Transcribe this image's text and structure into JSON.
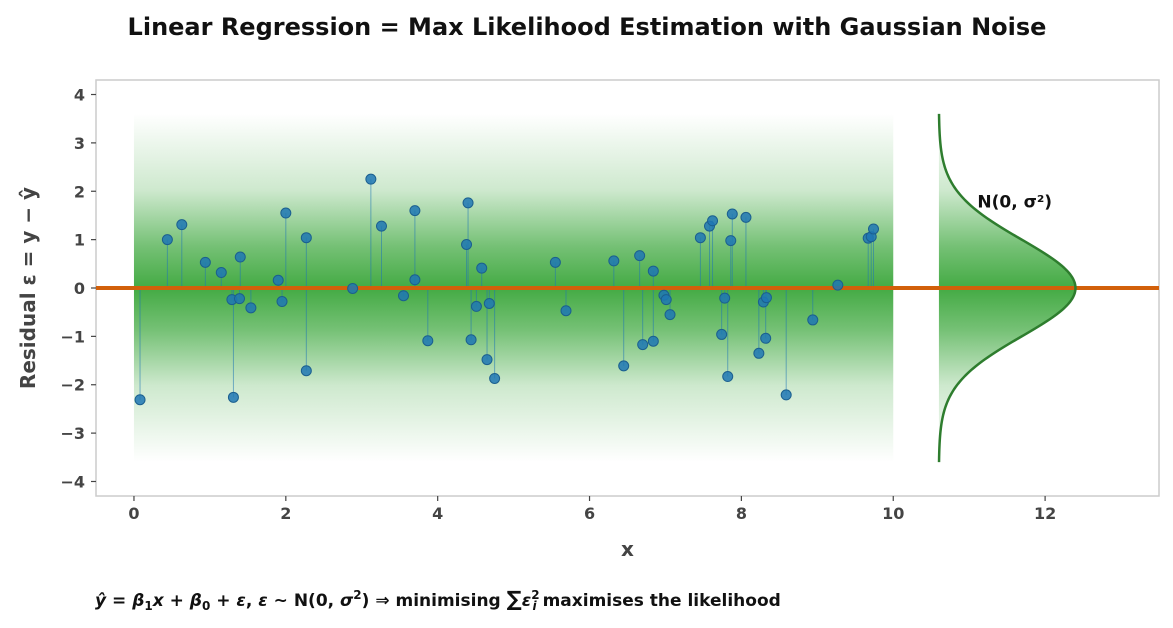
{
  "chart_data": {
    "type": "scatter",
    "title": "Linear Regression  =  Max Likelihood Estimation with Gaussian Noise",
    "xlabel": "x",
    "ylabel": "Residual  ε = y − ŷ",
    "xlim": [
      -0.5,
      13.5
    ],
    "ylim": [
      -4.3,
      4.3
    ],
    "x_ticks": [
      0,
      2,
      4,
      6,
      8,
      10,
      12
    ],
    "y_ticks": [
      4,
      3,
      2,
      1,
      0,
      -1,
      -2,
      -3,
      -4
    ],
    "x_tick_labels": [
      "0",
      "2",
      "4",
      "6",
      "8",
      "10",
      "12"
    ],
    "y_tick_labels": [
      "4",
      "3",
      "2",
      "1",
      "0",
      "−1",
      "−2",
      "−3",
      "−4"
    ],
    "grid": false,
    "zero_line": {
      "y": 0,
      "color": "#d2600a"
    },
    "band": {
      "x_range": [
        0,
        10
      ],
      "y_range": [
        -3.6,
        3.6
      ],
      "color": "#3aa63a"
    },
    "gaussian": {
      "mean": 0,
      "sigma": 1,
      "label": "N(0, σ²)",
      "x_base": 10.6,
      "x_peak": 12.4,
      "y_range": [
        -3.6,
        3.6
      ],
      "color": "#2e7d2e"
    },
    "series": [
      {
        "color": "#1f77b4",
        "points": [
          [
            0.08,
            -2.31
          ],
          [
            0.44,
            1.0
          ],
          [
            0.63,
            1.31
          ],
          [
            0.94,
            0.53
          ],
          [
            1.15,
            0.32
          ],
          [
            1.29,
            -0.24
          ],
          [
            1.31,
            -2.26
          ],
          [
            1.39,
            -0.22
          ],
          [
            1.4,
            0.64
          ],
          [
            1.54,
            -0.41
          ],
          [
            1.9,
            0.16
          ],
          [
            1.95,
            -0.28
          ],
          [
            2.0,
            1.55
          ],
          [
            2.27,
            -1.71
          ],
          [
            2.27,
            1.04
          ],
          [
            2.88,
            -0.01
          ],
          [
            3.12,
            2.25
          ],
          [
            3.26,
            1.28
          ],
          [
            3.55,
            -0.16
          ],
          [
            3.7,
            0.17
          ],
          [
            3.7,
            1.6
          ],
          [
            3.87,
            -1.09
          ],
          [
            4.38,
            0.9
          ],
          [
            4.4,
            1.76
          ],
          [
            4.44,
            -1.07
          ],
          [
            4.51,
            -0.38
          ],
          [
            4.58,
            0.41
          ],
          [
            4.65,
            -1.48
          ],
          [
            4.68,
            -0.32
          ],
          [
            4.75,
            -1.87
          ],
          [
            5.55,
            0.53
          ],
          [
            5.69,
            -0.47
          ],
          [
            6.32,
            0.56
          ],
          [
            6.45,
            -1.61
          ],
          [
            6.66,
            0.67
          ],
          [
            6.7,
            -1.17
          ],
          [
            6.84,
            -1.1
          ],
          [
            6.84,
            0.35
          ],
          [
            6.98,
            -0.15
          ],
          [
            7.01,
            -0.24
          ],
          [
            7.06,
            -0.55
          ],
          [
            7.46,
            1.04
          ],
          [
            7.58,
            1.28
          ],
          [
            7.62,
            1.39
          ],
          [
            7.74,
            -0.96
          ],
          [
            7.78,
            -0.21
          ],
          [
            7.82,
            -1.83
          ],
          [
            7.86,
            0.98
          ],
          [
            7.88,
            1.53
          ],
          [
            8.06,
            1.46
          ],
          [
            8.23,
            -1.35
          ],
          [
            8.29,
            -0.29
          ],
          [
            8.32,
            -1.04
          ],
          [
            8.33,
            -0.2
          ],
          [
            8.59,
            -2.21
          ],
          [
            8.94,
            -0.66
          ],
          [
            9.27,
            0.06
          ],
          [
            9.67,
            1.03
          ],
          [
            9.71,
            1.06
          ],
          [
            9.74,
            1.22
          ]
        ]
      }
    ],
    "footnote_parts": {
      "yhat": "ŷ",
      "eq1": " = ",
      "beta1": "β",
      "sub1": "1",
      "x": "x",
      "plus1": " + ",
      "beta0": "β",
      "sub0": "0",
      "plus2": " + ",
      "eps1": "ε",
      "comma": ",    ",
      "eps2": "ε",
      "sim": " ~ N(0, ",
      "sigma": "σ",
      "sq1": "2",
      "close": ")    ⇒    minimising ",
      "sum": "∑",
      "eps3": "ε",
      "sup_i": "2",
      "sub_i": "i",
      "tail": " maximises the likelihood"
    }
  }
}
